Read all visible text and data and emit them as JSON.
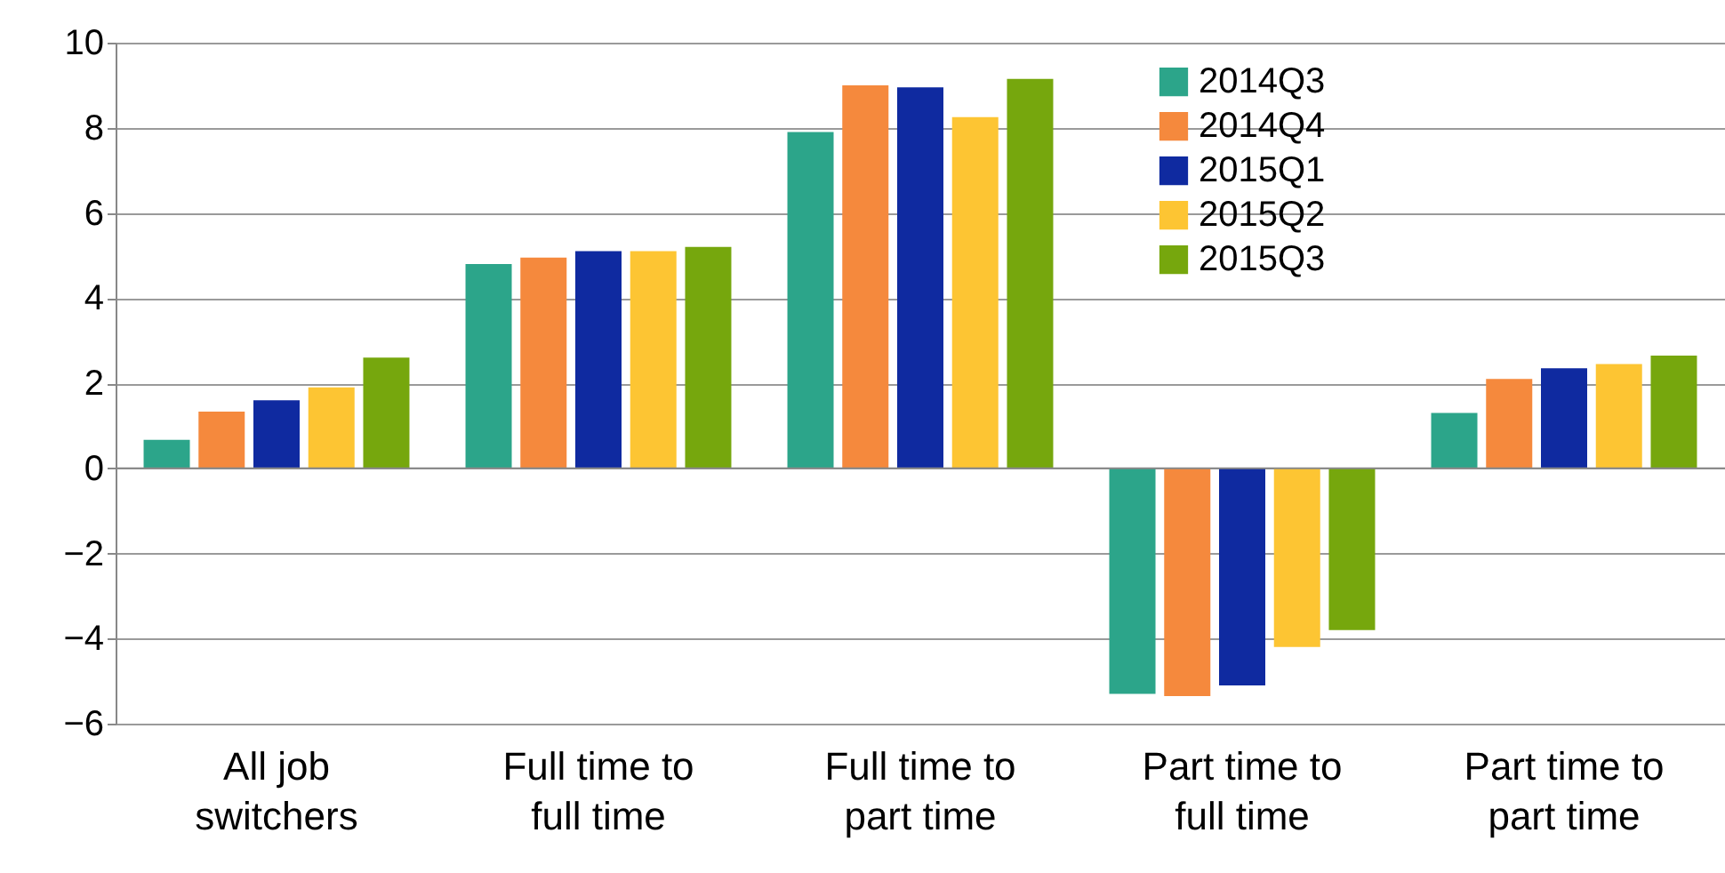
{
  "chart_data": {
    "type": "bar",
    "categories": [
      "All job switchers",
      "Full time to full time",
      "Full time to part time",
      "Part time to full time",
      "Part time to part time"
    ],
    "series": [
      {
        "name": "2014Q3",
        "color": "#2ca58a",
        "values": [
          0.67,
          4.8,
          7.9,
          -5.3,
          1.3
        ]
      },
      {
        "name": "2014Q4",
        "color": "#f5893d",
        "values": [
          1.33,
          4.95,
          9.0,
          -5.35,
          2.1
        ]
      },
      {
        "name": "2015Q1",
        "color": "#0f2aa0",
        "values": [
          1.6,
          5.1,
          8.95,
          -5.1,
          2.35
        ]
      },
      {
        "name": "2015Q2",
        "color": "#fdc533",
        "values": [
          1.9,
          5.1,
          8.25,
          -4.2,
          2.45
        ]
      },
      {
        "name": "2015Q3",
        "color": "#76a70d",
        "values": [
          2.6,
          5.2,
          9.15,
          -3.8,
          2.65
        ]
      }
    ],
    "ylim": [
      -6,
      10
    ],
    "yticks": [
      -6,
      -4,
      -2,
      0,
      2,
      4,
      6,
      8,
      10
    ],
    "grid": "y",
    "legend": "top right"
  }
}
